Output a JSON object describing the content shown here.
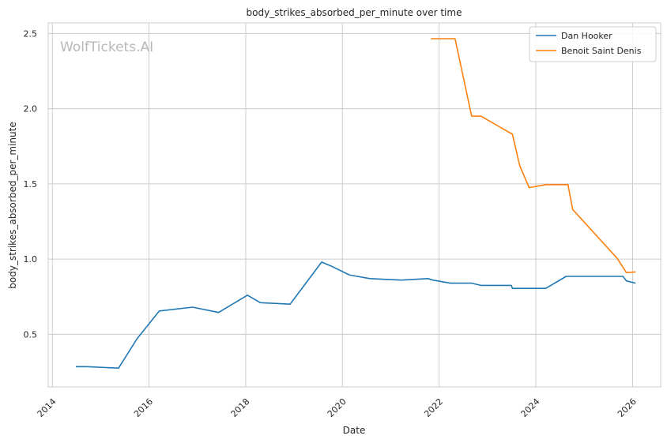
{
  "chart_data": {
    "type": "line",
    "title": "body_strikes_absorbed_per_minute over time",
    "xlabel": "Date",
    "ylabel": "body_strikes_absorbed_per_minute",
    "watermark": "WolfTickets.AI",
    "x_ticks": [
      "2014",
      "2016",
      "2018",
      "2020",
      "2022",
      "2024",
      "2026"
    ],
    "y_ticks": [
      "0.5",
      "1.0",
      "1.5",
      "2.0",
      "2.5"
    ],
    "xlim": [
      "2013-12-01",
      "2026-08-01"
    ],
    "ylim": [
      0.15,
      2.57
    ],
    "grid": true,
    "legend_position": "top-right",
    "series": [
      {
        "name": "Dan Hooker",
        "color": "#1f77b4",
        "points": [
          [
            "2014-06-28",
            0.285
          ],
          [
            "2014-09-15",
            0.285
          ],
          [
            "2015-05-16",
            0.275
          ],
          [
            "2015-10-03",
            0.47
          ],
          [
            "2016-03-19",
            0.655
          ],
          [
            "2016-11-26",
            0.68
          ],
          [
            "2017-06-10",
            0.645
          ],
          [
            "2018-01-14",
            0.76
          ],
          [
            "2018-04-21",
            0.71
          ],
          [
            "2018-12-02",
            0.7
          ],
          [
            "2019-07-28",
            0.98
          ],
          [
            "2019-10-05",
            0.955
          ],
          [
            "2020-02-22",
            0.895
          ],
          [
            "2020-07-26",
            0.87
          ],
          [
            "2021-03-20",
            0.86
          ],
          [
            "2021-10-09",
            0.87
          ],
          [
            "2021-11-15",
            0.86
          ],
          [
            "2022-03-26",
            0.84
          ],
          [
            "2022-09-03",
            0.84
          ],
          [
            "2022-11-12",
            0.825
          ],
          [
            "2023-06-30",
            0.825
          ],
          [
            "2023-07-08",
            0.805
          ],
          [
            "2024-03-16",
            0.805
          ],
          [
            "2024-08-17",
            0.885
          ],
          [
            "2025-10-20",
            0.885
          ],
          [
            "2025-11-15",
            0.855
          ],
          [
            "2026-01-24",
            0.84
          ]
        ]
      },
      {
        "name": "Benoit Saint Denis",
        "color": "#ff7f0e",
        "points": [
          [
            "2021-10-30",
            2.465
          ],
          [
            "2022-05-01",
            2.465
          ],
          [
            "2022-09-03",
            1.95
          ],
          [
            "2022-11-12",
            1.95
          ],
          [
            "2023-07-08",
            1.83
          ],
          [
            "2023-09-02",
            1.62
          ],
          [
            "2023-11-11",
            1.475
          ],
          [
            "2024-03-16",
            1.495
          ],
          [
            "2024-08-31",
            1.495
          ],
          [
            "2024-10-05",
            1.33
          ],
          [
            "2025-09-06",
            1.005
          ],
          [
            "2025-11-15",
            0.91
          ],
          [
            "2026-01-24",
            0.915
          ]
        ]
      }
    ]
  }
}
